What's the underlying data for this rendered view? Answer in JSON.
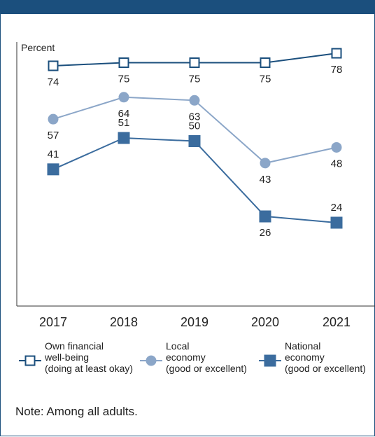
{
  "chart_data": {
    "type": "line",
    "ylabel": "Percent",
    "x": [
      "2017",
      "2018",
      "2019",
      "2020",
      "2021"
    ],
    "ylim": [
      0,
      100
    ],
    "grid": false,
    "legend_position": "bottom",
    "series": [
      {
        "name": "Own financial well-being (doing at least okay)",
        "legend_lines": [
          "Own financial",
          "well-being",
          "(doing at least okay)"
        ],
        "marker": "hollow-square",
        "color": "#1b4f7d",
        "values": [
          74,
          75,
          75,
          75,
          78
        ]
      },
      {
        "name": "Local economy (good or excellent)",
        "legend_lines": [
          "Local",
          "economy",
          "(good or excellent)"
        ],
        "marker": "circle",
        "color": "#8ba6c8",
        "values": [
          57,
          64,
          63,
          43,
          48
        ]
      },
      {
        "name": "National economy (good or excellent)",
        "legend_lines": [
          "National",
          "economy",
          "(good or excellent)"
        ],
        "marker": "filled-square",
        "color": "#3b6c9e",
        "values": [
          41,
          51,
          50,
          26,
          24
        ]
      }
    ],
    "label_positions": [
      [
        "below",
        "below",
        "below",
        "below",
        "below"
      ],
      [
        "below",
        "below",
        "below",
        "below",
        "below"
      ],
      [
        "above",
        "above",
        "above",
        "below",
        "above"
      ]
    ]
  },
  "note": "Note: Among all adults."
}
